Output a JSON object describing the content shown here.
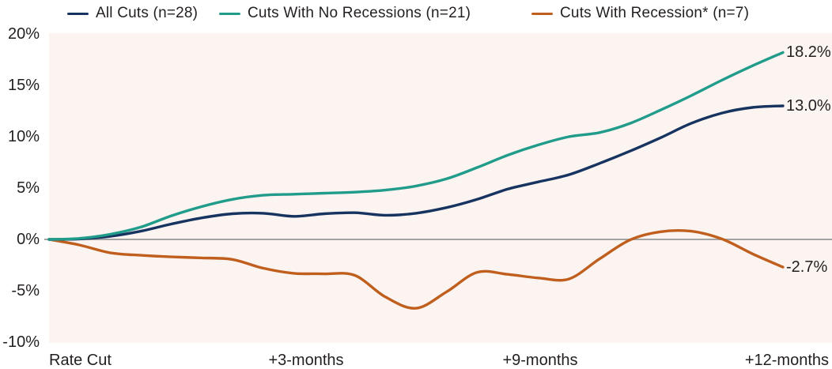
{
  "chart_data": {
    "type": "line",
    "x_axis": {
      "labels": [
        "Rate Cut",
        "+3-months",
        "+9-months",
        "+12-months"
      ]
    },
    "y_axis": {
      "tick_labels": [
        "20%",
        "15%",
        "10%",
        "5%",
        "0%",
        "-5%",
        "-10%"
      ],
      "range": [
        -10,
        20
      ],
      "unit": "%"
    },
    "x_range_months": [
      0,
      12
    ],
    "x_step_months": 0.5,
    "grid": "zero-line-only",
    "legend_position": "top",
    "style": {
      "plot_background": "#fcf4f1",
      "zero_line_color": "#a3a3a3",
      "text_color": "#231f20"
    },
    "series": [
      {
        "name": "All Cuts (n=28)",
        "color": "#17335f",
        "end_label": "13.0%",
        "end_value": 13.0,
        "values": [
          0,
          0.05,
          0.3,
          0.8,
          1.5,
          2.1,
          2.5,
          2.55,
          2.25,
          2.5,
          2.6,
          2.35,
          2.55,
          3.1,
          3.9,
          4.9,
          5.6,
          6.3,
          7.4,
          8.6,
          9.9,
          11.3,
          12.3,
          12.85,
          13.0
        ]
      },
      {
        "name": "Cuts With No Recessions (n=21)",
        "color": "#219c8b",
        "end_label": "18.2%",
        "end_value": 18.2,
        "values": [
          0,
          0.1,
          0.5,
          1.2,
          2.3,
          3.2,
          3.9,
          4.3,
          4.4,
          4.5,
          4.6,
          4.8,
          5.2,
          5.9,
          7.0,
          8.2,
          9.2,
          10.0,
          10.4,
          11.3,
          12.6,
          14.0,
          15.5,
          16.9,
          18.2
        ]
      },
      {
        "name": "Cuts With Recession* (n=7)",
        "color": "#c05e1d",
        "end_label": "-2.7%",
        "end_value": -2.7,
        "values": [
          0,
          -0.55,
          -1.3,
          -1.55,
          -1.7,
          -1.8,
          -1.95,
          -2.8,
          -3.3,
          -3.35,
          -3.5,
          -5.6,
          -6.7,
          -5.1,
          -3.2,
          -3.4,
          -3.75,
          -3.85,
          -1.9,
          -0.05,
          0.75,
          0.8,
          0.05,
          -1.4,
          -2.7
        ]
      }
    ]
  }
}
